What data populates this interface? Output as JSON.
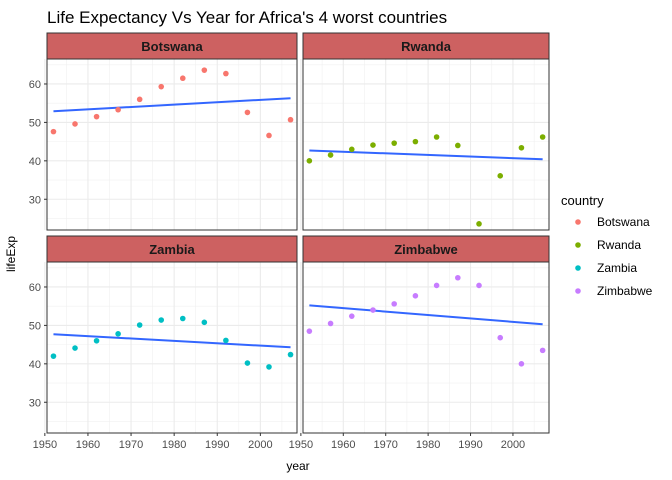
{
  "chart_data": {
    "type": "scatter",
    "title": "Life Expectancy Vs Year for Africa's 4 worst countries",
    "xlabel": "year",
    "ylabel": "lifeExp",
    "xlim": [
      1950.5,
      2008.5
    ],
    "ylim": [
      22,
      66.5
    ],
    "x_ticks": [
      1950,
      1960,
      1970,
      1980,
      1990,
      2000
    ],
    "x_tick_labels": [
      "1950",
      "1960",
      "1970",
      "1980",
      "1990",
      "2000"
    ],
    "y_ticks": [
      30,
      40,
      50,
      60
    ],
    "y_tick_labels": [
      "30",
      "40",
      "50",
      "60"
    ],
    "grid": true,
    "facets": [
      "Botswana",
      "Rwanda",
      "Zambia",
      "Zimbabwe"
    ],
    "legend": {
      "title": "country",
      "position": "right"
    },
    "strip_color": "#cd6161",
    "trend_color": "#3366ff",
    "series": [
      {
        "name": "Botswana",
        "color": "#f8766d",
        "x": [
          1952,
          1957,
          1962,
          1967,
          1972,
          1977,
          1982,
          1987,
          1992,
          1997,
          2002,
          2007
        ],
        "y": [
          47.6,
          49.6,
          51.5,
          53.3,
          56.0,
          59.3,
          61.5,
          63.6,
          62.7,
          52.6,
          46.6,
          50.7
        ],
        "trend": {
          "x": [
            1952,
            2007
          ],
          "y": [
            52.9,
            56.3
          ]
        }
      },
      {
        "name": "Rwanda",
        "color": "#7cae00",
        "x": [
          1952,
          1957,
          1962,
          1967,
          1972,
          1977,
          1982,
          1987,
          1992,
          1997,
          2002,
          2007
        ],
        "y": [
          40.0,
          41.5,
          43.0,
          44.1,
          44.6,
          45.0,
          46.2,
          44.0,
          23.6,
          36.1,
          43.4,
          46.2
        ],
        "trend": {
          "x": [
            1952,
            2007
          ],
          "y": [
            42.7,
            40.4
          ]
        }
      },
      {
        "name": "Zambia",
        "color": "#00bfc4",
        "x": [
          1952,
          1957,
          1962,
          1967,
          1972,
          1977,
          1982,
          1987,
          1992,
          1997,
          2002,
          2007
        ],
        "y": [
          42.0,
          44.1,
          46.0,
          47.8,
          50.1,
          51.4,
          51.8,
          50.8,
          46.1,
          40.2,
          39.2,
          42.4
        ],
        "trend": {
          "x": [
            1952,
            2007
          ],
          "y": [
            47.7,
            44.3
          ]
        }
      },
      {
        "name": "Zimbabwe",
        "color": "#c77cff",
        "x": [
          1952,
          1957,
          1962,
          1967,
          1972,
          1977,
          1982,
          1987,
          1992,
          1997,
          2002,
          2007
        ],
        "y": [
          48.5,
          50.5,
          52.4,
          54.0,
          55.6,
          57.7,
          60.4,
          62.4,
          60.4,
          46.8,
          40.0,
          43.5
        ],
        "trend": {
          "x": [
            1952,
            2007
          ],
          "y": [
            55.2,
            50.3
          ]
        }
      }
    ]
  }
}
